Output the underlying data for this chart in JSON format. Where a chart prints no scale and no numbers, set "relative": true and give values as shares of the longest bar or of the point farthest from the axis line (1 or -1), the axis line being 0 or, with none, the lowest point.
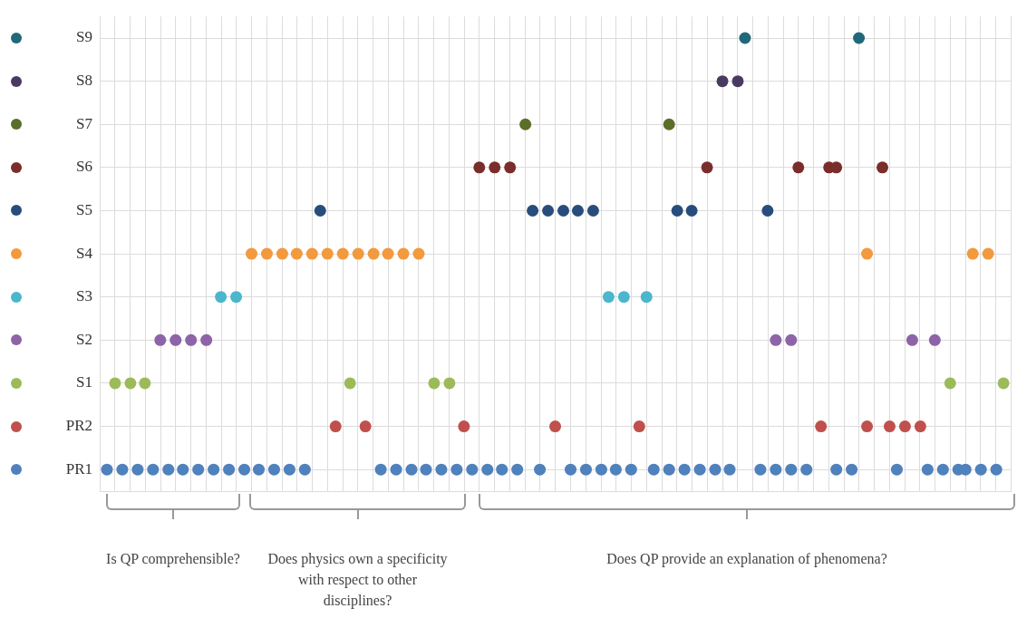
{
  "chart_data": {
    "type": "scatter",
    "orientation": "horizontal",
    "relative": true,
    "marker": "circle",
    "grid": true,
    "categories": [
      "S9",
      "S8",
      "S7",
      "S6",
      "S5",
      "S4",
      "S3",
      "S2",
      "S1",
      "PR2",
      "PR1"
    ],
    "series": [
      {
        "color": "#4f81bd",
        "x": [
          "PR1",
          "PR1",
          "PR1",
          "PR1",
          "PR1",
          "PR1",
          "PR1",
          "PR1",
          "PR1",
          "PR1",
          "PR1",
          "PR1",
          "PR1",
          "PR1",
          "PR1",
          "PR1",
          "PR1",
          "PR1",
          "PR1",
          "PR1",
          "PR1",
          "PR1",
          "PR1",
          "PR1",
          "PR1",
          "PR1",
          "PR1",
          "PR1",
          "PR1",
          "PR1",
          "PR1",
          "PR1",
          "PR1",
          "PR1",
          "PR1",
          "PR1",
          "PR1",
          "PR1",
          "PR1",
          "PR1",
          "PR1",
          "PR1",
          "PR1",
          "PR1",
          "PR1",
          "PR1",
          "PR1",
          "PR1",
          "PR1"
        ],
        "values": [
          0.008,
          0.025,
          0.042,
          0.059,
          0.076,
          0.092,
          0.109,
          0.126,
          0.143,
          0.16,
          0.176,
          0.193,
          0.21,
          0.227,
          0.311,
          0.328,
          0.345,
          0.361,
          0.378,
          0.395,
          0.412,
          0.429,
          0.445,
          0.462,
          0.487,
          0.521,
          0.538,
          0.555,
          0.571,
          0.588,
          0.613,
          0.63,
          0.647,
          0.664,
          0.681,
          0.697,
          0.731,
          0.748,
          0.765,
          0.782,
          0.815,
          0.832,
          0.882,
          0.916,
          0.933,
          0.95,
          0.958,
          0.975,
          0.992
        ]
      },
      {
        "color": "#c0504d",
        "x": [
          "PR2",
          "PR2",
          "PR2",
          "PR2",
          "PR2",
          "PR2",
          "PR2",
          "PR2",
          "PR2",
          "PR2"
        ],
        "values": [
          0.261,
          0.294,
          0.403,
          0.504,
          0.597,
          0.798,
          0.849,
          0.874,
          0.891,
          0.908
        ]
      },
      {
        "color": "#9bbb59",
        "x": [
          "S1",
          "S1",
          "S1",
          "S1",
          "S1",
          "S1",
          "S1",
          "S1"
        ],
        "values": [
          0.017,
          0.034,
          0.05,
          0.277,
          0.37,
          0.387,
          0.941,
          1
        ]
      },
      {
        "color": "#8e64a8",
        "x": [
          "S2",
          "S2",
          "S2",
          "S2",
          "S2",
          "S2",
          "S2",
          "S2"
        ],
        "values": [
          0.067,
          0.084,
          0.101,
          0.118,
          0.748,
          0.765,
          0.899,
          0.924
        ]
      },
      {
        "color": "#4bb6cc",
        "x": [
          "S3",
          "S3",
          "S3",
          "S3",
          "S3"
        ],
        "values": [
          0.134,
          0.151,
          0.563,
          0.58,
          0.605
        ]
      },
      {
        "color": "#f29a3d",
        "x": [
          "S4",
          "S4",
          "S4",
          "S4",
          "S4",
          "S4",
          "S4",
          "S4",
          "S4",
          "S4",
          "S4",
          "S4",
          "S4",
          "S4",
          "S4"
        ],
        "values": [
          0.168,
          0.185,
          0.202,
          0.218,
          0.235,
          0.252,
          0.269,
          0.286,
          0.303,
          0.319,
          0.336,
          0.353,
          0.849,
          0.966,
          0.983
        ]
      },
      {
        "color": "#284d7c",
        "x": [
          "S5",
          "S5",
          "S5",
          "S5",
          "S5",
          "S5",
          "S5",
          "S5",
          "S5"
        ],
        "values": [
          0.244,
          0.479,
          0.496,
          0.513,
          0.529,
          0.546,
          0.639,
          0.655,
          0.739
        ]
      },
      {
        "color": "#7a2d2a",
        "x": [
          "S6",
          "S6",
          "S6",
          "S6",
          "S6",
          "S6",
          "S6",
          "S6"
        ],
        "values": [
          0.42,
          0.437,
          0.454,
          0.672,
          0.773,
          0.807,
          0.815,
          0.866
        ]
      },
      {
        "color": "#5b6e2a",
        "x": [
          "S7",
          "S7"
        ],
        "values": [
          0.471,
          0.63
        ]
      },
      {
        "color": "#4a3a63",
        "x": [
          "S8",
          "S8"
        ],
        "values": [
          0.689,
          0.706
        ]
      },
      {
        "color": "#21687a",
        "x": [
          "S9",
          "S9"
        ],
        "values": [
          0.714,
          0.84
        ]
      }
    ],
    "annotations": [
      "Is QP comprehensible?",
      "Does physics own a specificity with respect to other disciplines?",
      "Does QP provide an explanation of phenomena?"
    ]
  }
}
